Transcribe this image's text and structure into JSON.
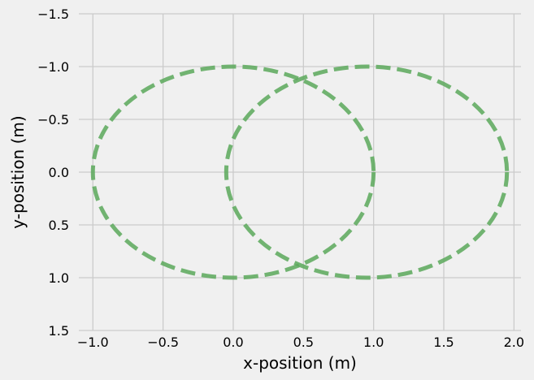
{
  "chart_data": {
    "type": "line",
    "title": "",
    "xlabel": "x-position (m)",
    "ylabel": "y-position (m)",
    "xlim": [
      -1.1,
      2.05
    ],
    "ylim": [
      1.5,
      -1.5
    ],
    "y_inverted": true,
    "grid": true,
    "legend": "none",
    "x_ticks": [
      {
        "value": -1.0,
        "label": "−1.0"
      },
      {
        "value": -0.5,
        "label": "−0.5"
      },
      {
        "value": 0.0,
        "label": "0.0"
      },
      {
        "value": 0.5,
        "label": "0.5"
      },
      {
        "value": 1.0,
        "label": "1.0"
      },
      {
        "value": 1.5,
        "label": "1.5"
      },
      {
        "value": 2.0,
        "label": "2.0"
      }
    ],
    "y_ticks": [
      {
        "value": -1.5,
        "label": "−1.5"
      },
      {
        "value": -1.0,
        "label": "−1.0"
      },
      {
        "value": -0.5,
        "label": "−0.5"
      },
      {
        "value": 0.0,
        "label": "0.0"
      },
      {
        "value": 0.5,
        "label": "0.5"
      },
      {
        "value": 1.0,
        "label": "1.0"
      },
      {
        "value": 1.5,
        "label": "1.5"
      }
    ],
    "series": [
      {
        "shape": "circle",
        "center": [
          0.0,
          0.0
        ],
        "radius": 1.0,
        "color": "#5aa85a",
        "line_style": "dashed"
      },
      {
        "shape": "circle",
        "center": [
          0.95,
          0.0
        ],
        "radius": 1.0,
        "color": "#5aa85a",
        "line_style": "dashed"
      }
    ]
  },
  "colors": {
    "background": "#f0f0f0",
    "grid": "#cbcbcb",
    "series": "#5aa85a"
  }
}
